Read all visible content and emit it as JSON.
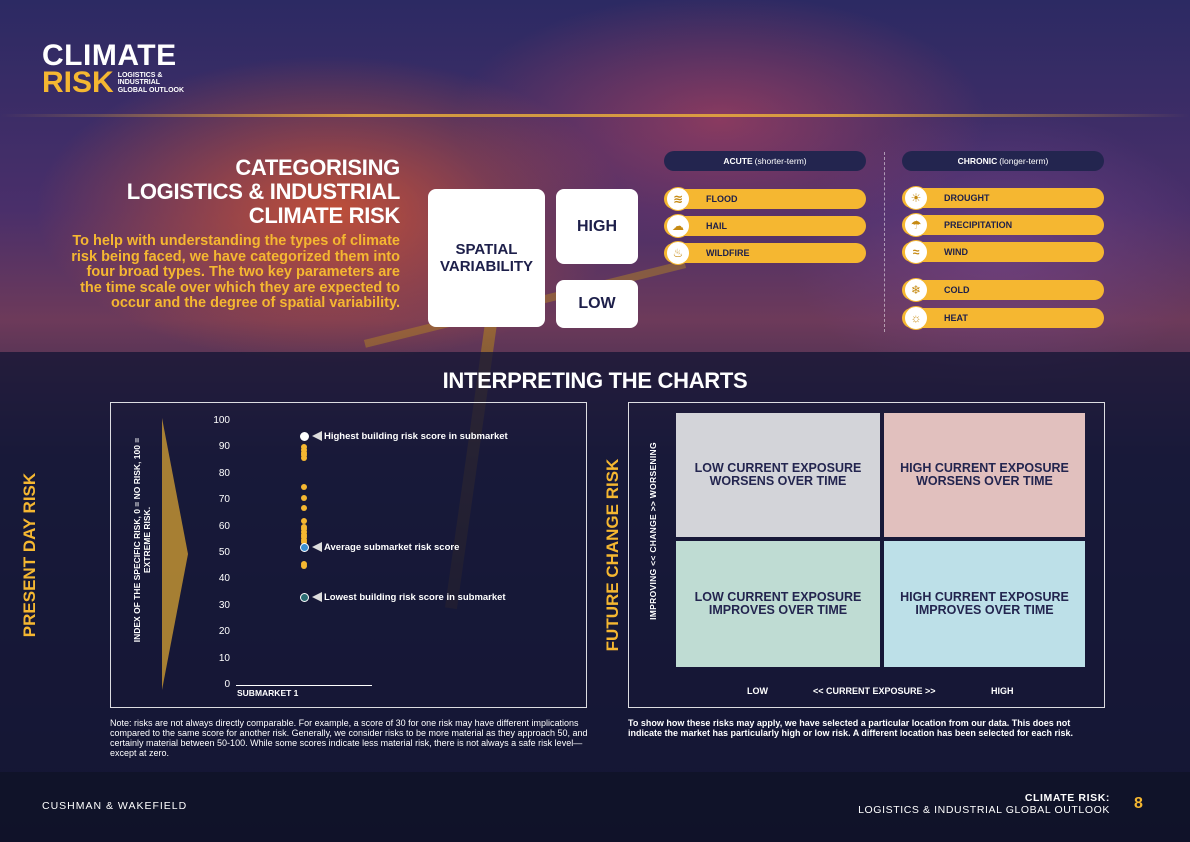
{
  "logo": {
    "line1": "CLIMATE",
    "line2": "RISK",
    "sub1": "LOGISTICS &",
    "sub2": "INDUSTRIAL",
    "sub3": "GLOBAL OUTLOOK"
  },
  "categorising": {
    "title_l1": "CATEGORISING",
    "title_l2": "LOGISTICS & INDUSTRIAL",
    "title_l3": "CLIMATE RISK",
    "description": "To help with understanding the types of climate risk being faced, we have categorized them into four broad types. The two key parameters are the time scale over which they are expected to occur and the degree of spatial variability."
  },
  "spatial": {
    "label_l1": "SPATIAL",
    "label_l2": "VARIABILITY",
    "high": "HIGH",
    "low": "LOW"
  },
  "acute": {
    "head_bold": "ACUTE",
    "head_rest": "(shorter-term)",
    "items": [
      {
        "label": "FLOOD",
        "icon": "flood-icon",
        "glyph": "≋"
      },
      {
        "label": "HAIL",
        "icon": "hail-icon",
        "glyph": "☁"
      },
      {
        "label": "WILDFIRE",
        "icon": "wildfire-icon",
        "glyph": "♨"
      }
    ]
  },
  "chronic": {
    "head_bold": "CHRONIC",
    "head_rest": "(longer-term)",
    "items": [
      {
        "label": "DROUGHT",
        "icon": "drought-icon",
        "glyph": "☀"
      },
      {
        "label": "PRECIPITATION",
        "icon": "precipitation-icon",
        "glyph": "☂"
      },
      {
        "label": "WIND",
        "icon": "wind-icon",
        "glyph": "≈"
      },
      {
        "label": "COLD",
        "icon": "cold-icon",
        "glyph": "❄"
      },
      {
        "label": "HEAT",
        "icon": "heat-icon",
        "glyph": "☼"
      }
    ]
  },
  "interpreting": {
    "title": "INTERPRETING THE CHARTS"
  },
  "left_chart": {
    "side_label": "PRESENT DAY RISK",
    "index_label_l1": "INDEX OF THE SPECIFIC RISK, 0 = NO RISK, 100 =",
    "index_label_l2": "EXTREME RISK.",
    "submarket": "SUBMARKET 1",
    "callout_high": "Highest building risk score in submarket",
    "callout_avg": "Average submarket risk score",
    "callout_low": "Lowest building risk score in submarket",
    "note": "Note: risks are not always directly comparable. For example, a score of 30 for one risk may have different implications compared to the same score for another risk. Generally, we consider risks to be more material as they approach 50, and certainly material between 50-100. While some scores indicate less material risk, there is not always a safe risk level—except at zero."
  },
  "chart_data": {
    "type": "scatter",
    "ylim": [
      0,
      100
    ],
    "yticks": [
      "100",
      "90",
      "80",
      "70",
      "60",
      "50",
      "40",
      "30",
      "20",
      "10",
      "0"
    ],
    "categories": [
      "SUBMARKET 1"
    ],
    "highest": 94,
    "average": 52,
    "lowest": 33,
    "points": [
      94,
      90,
      89,
      88,
      87,
      86,
      75,
      71,
      67,
      62,
      60,
      59,
      58,
      57,
      56,
      55,
      54,
      52,
      46,
      45,
      33
    ]
  },
  "right_chart": {
    "side_label": "FUTURE CHANGE RISK",
    "change_label": "IMPROVING  << CHANGE >>  WORSENING",
    "q_tl": "LOW CURRENT EXPOSURE WORSENS OVER TIME",
    "q_tr": "HIGH CURRENT EXPOSURE WORSENS OVER TIME",
    "q_bl": "LOW CURRENT EXPOSURE IMPROVES OVER TIME",
    "q_br": "HIGH CURRENT EXPOSURE IMPROVES OVER TIME",
    "x_low": "LOW",
    "x_mid": "<< CURRENT EXPOSURE >>",
    "x_high": "HIGH",
    "note": "To show how these risks may apply, we have selected a particular location from our data. This does not indicate the market has particularly high or low risk. A different location has been selected for each risk."
  },
  "footer": {
    "brand": "CUSHMAN & WAKEFIELD",
    "title_l1": "CLIMATE RISK:",
    "title_l2": "LOGISTICS & INDUSTRIAL GLOBAL OUTLOOK",
    "page": "8"
  },
  "colors": {
    "gold": "#f5b731",
    "navy": "#23254f"
  }
}
